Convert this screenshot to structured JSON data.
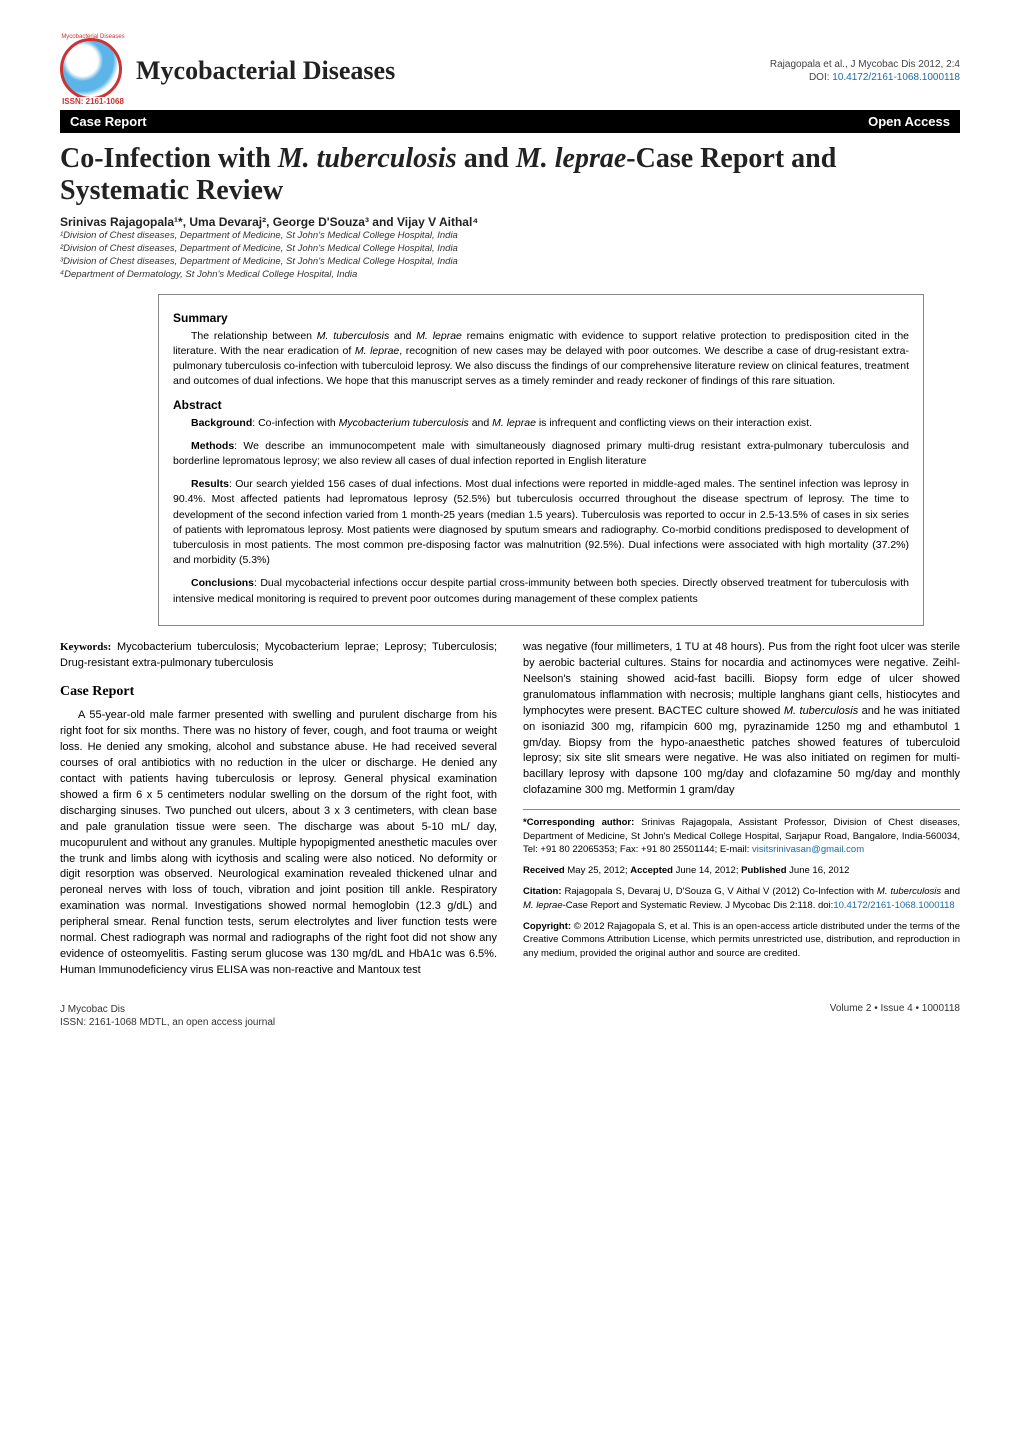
{
  "header": {
    "journal_name": "Mycobacterial Diseases",
    "logo_arc_text": "Mycobacterial Diseases",
    "logo_issn": "ISSN: 2161-1068",
    "citation_line1": "Rajagopala et al., J Mycobac Dis 2012, 2:4",
    "doi_label": "DOI: ",
    "doi_link": "10.4172/2161-1068.1000118"
  },
  "bar": {
    "left": "Case Report",
    "right": "Open Access"
  },
  "title": "Co-Infection with M. tuberculosis and M. leprae-Case Report and Systematic Review",
  "authors_html": "Srinivas Rajagopala¹*, Uma Devaraj², George D'Souza³ and Vijay V Aithal⁴",
  "affils": [
    "¹Division of Chest diseases, Department of Medicine, St John's Medical College Hospital, India",
    "²Division of Chest diseases, Department of Medicine, St John's Medical College Hospital, India",
    "³Division of Chest diseases, Department of Medicine, St John's Medical College Hospital, India",
    "⁴Department of Dermatology, St John's Medical College Hospital, India"
  ],
  "box": {
    "summary_head": "Summary",
    "summary_text": "The relationship between M. tuberculosis and M. leprae remains enigmatic with evidence to support relative protection to predisposition cited in the literature. With the near eradication of M. leprae, recognition of new cases may be delayed with poor outcomes. We describe a case of drug-resistant extra-pulmonary tuberculosis co-infection with tuberculoid leprosy. We also discuss the findings of our comprehensive literature review on clinical features, treatment and outcomes of dual infections. We hope that this manuscript serves as a timely reminder and ready reckoner of findings of this rare situation.",
    "abstract_head": "Abstract",
    "bg": "Background: Co-infection with Mycobacterium tuberculosis and M. leprae is infrequent and conflicting views on their interaction exist.",
    "methods": "Methods: We describe an immunocompetent male with simultaneously diagnosed primary multi-drug resistant extra-pulmonary tuberculosis and borderline lepromatous leprosy; we also review all cases of dual infection reported in English literature",
    "results": "Results: Our search yielded 156 cases of dual infections. Most dual infections were reported in middle-aged males. The sentinel infection was leprosy in 90.4%. Most affected patients had lepromatous leprosy (52.5%) but tuberculosis occurred throughout the disease spectrum of leprosy. The time to development of the second infection varied from 1 month-25 years (median 1.5 years). Tuberculosis was reported to occur in 2.5-13.5% of cases in six series of patients with lepromatous leprosy. Most patients were diagnosed by sputum smears and radiography. Co-morbid conditions predisposed to development of tuberculosis in most patients. The most common pre-disposing factor was malnutrition (92.5%). Dual infections were associated with high mortality (37.2%) and morbidity (5.3%)",
    "conclusions": "Conclusions: Dual mycobacterial infections occur despite partial cross-immunity between both species. Directly observed treatment for tuberculosis with intensive medical monitoring is required to prevent poor outcomes during management of these complex patients"
  },
  "col1": {
    "kw_label": "Keywords:",
    "kw_text": " Mycobacterium tuberculosis; Mycobacterium leprae; Leprosy; Tuberculosis; Drug-resistant extra-pulmonary tuberculosis",
    "case_head": "Case Report",
    "case_body": "A 55-year-old male farmer presented with swelling and purulent discharge from his right foot for six months. There was no history of fever, cough, and foot trauma or weight loss. He denied any smoking, alcohol and substance abuse. He had received several courses of oral antibiotics with no reduction in the ulcer or discharge. He denied any contact with patients having tuberculosis or leprosy. General physical examination showed a firm 6 x 5 centimeters nodular swelling on the dorsum of the right foot, with discharging sinuses. Two punched out ulcers, about 3 x 3 centimeters, with clean base and pale granulation tissue were seen. The discharge was about 5-10 mL/ day, mucopurulent and without any granules. Multiple hypopigmented anesthetic macules over the trunk and limbs along with icythosis and scaling were also noticed. No deformity or digit resorption was observed. Neurological examination revealed thickened ulnar and peroneal nerves with loss of touch, vibration and joint position till ankle. Respiratory examination was normal. Investigations showed normal hemoglobin (12.3 g/dL) and peripheral smear. Renal function tests, serum electrolytes and liver function tests were normal. Chest radiograph was normal and radiographs of the right foot did not show any evidence of osteomyelitis. Fasting serum glucose was 130 mg/dL and HbA1c was 6.5%. Human Immunodeficiency virus ELISA was non-reactive and Mantoux test"
  },
  "col2": {
    "cont": "was negative (four millimeters, 1 TU at 48 hours). Pus from the right foot ulcer was sterile by aerobic bacterial cultures. Stains for nocardia and actinomyces were negative. Zeihl-Neelson's staining showed acid-fast bacilli. Biopsy form edge of ulcer showed granulomatous inflammation with necrosis; multiple langhans giant cells, histiocytes and lymphocytes were present. BACTEC culture showed M. tuberculosis and he was initiated on isoniazid 300 mg, rifampicin 600 mg, pyrazinamide 1250 mg and ethambutol 1 gm/day. Biopsy from the hypo-anaesthetic patches showed features of tuberculoid leprosy; six site slit smears were negative. He was also initiated on regimen for multi-bacillary leprosy with dapsone 100 mg/day and clofazamine 50 mg/day and monthly clofazamine 300 mg. Metformin 1 gram/day",
    "corr_label": "*Corresponding author:",
    "corr_text": " Srinivas Rajagopala, Assistant Professor, Division of Chest diseases, Department of Medicine, St John's Medical College Hospital, Sarjapur Road, Bangalore, India-560034, Tel: +91 80 22065353; Fax: +91 80 25501144; E-mail: ",
    "corr_email": "visitsrinivasan@gmail.com",
    "dates": "Received May 25, 2012; Accepted June 14, 2012; Published June 16, 2012",
    "citation_label": "Citation:",
    "citation_text": " Rajagopala S, Devaraj U, D'Souza G, V Aithal V (2012) Co-Infection with M. tuberculosis and M. leprae-Case Report and Systematic Review. J Mycobac Dis 2:118. doi:",
    "citation_doi": "10.4172/2161-1068.1000118",
    "copyright_label": "Copyright:",
    "copyright_text": " © 2012 Rajagopala S, et al. This is an open-access article distributed under the terms of the Creative Commons Attribution License, which permits unrestricted use, distribution, and reproduction in any medium, provided the original author and source are credited."
  },
  "footer": {
    "left1": "J Mycobac Dis",
    "left2": "ISSN: 2161-1068 MDTL, an open access journal",
    "right": "Volume 2 • Issue 4 • 1000118"
  }
}
